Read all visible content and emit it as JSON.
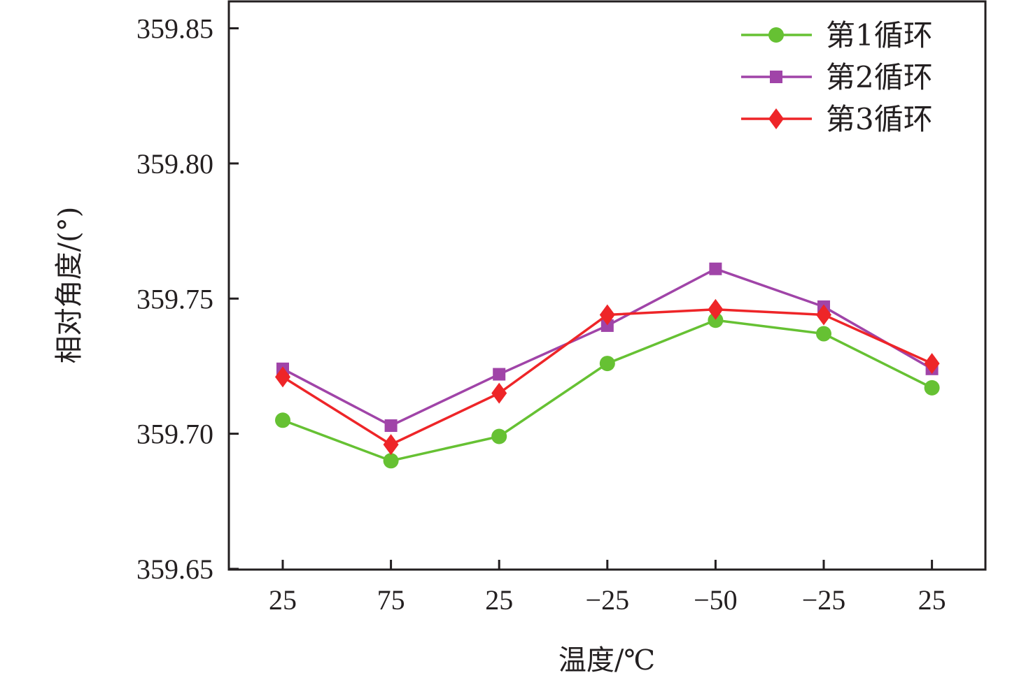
{
  "chart_data": {
    "type": "line",
    "title": "",
    "xlabel": "温度/℃",
    "ylabel": "相对角度/(°)",
    "categories": [
      "25",
      "75",
      "25",
      "−25",
      "−50",
      "−25",
      "25"
    ],
    "ylim": [
      359.65,
      359.85
    ],
    "yticks": [
      "359.65",
      "359.70",
      "359.75",
      "359.80",
      "359.85"
    ],
    "ytick_values": [
      359.65,
      359.7,
      359.75,
      359.8,
      359.85
    ],
    "grid": false,
    "legend_position": "top-right",
    "series": [
      {
        "name": "第1循环",
        "color": "#66c133",
        "marker": "circle",
        "values": [
          359.705,
          359.69,
          359.699,
          359.726,
          359.742,
          359.737,
          359.717
        ]
      },
      {
        "name": "第2循环",
        "color": "#a044a8",
        "marker": "square",
        "values": [
          359.724,
          359.703,
          359.722,
          359.74,
          359.761,
          359.747,
          359.724
        ]
      },
      {
        "name": "第3循环",
        "color": "#ee2528",
        "marker": "diamond",
        "values": [
          359.721,
          359.696,
          359.715,
          359.744,
          359.746,
          359.744,
          359.726
        ]
      }
    ]
  }
}
